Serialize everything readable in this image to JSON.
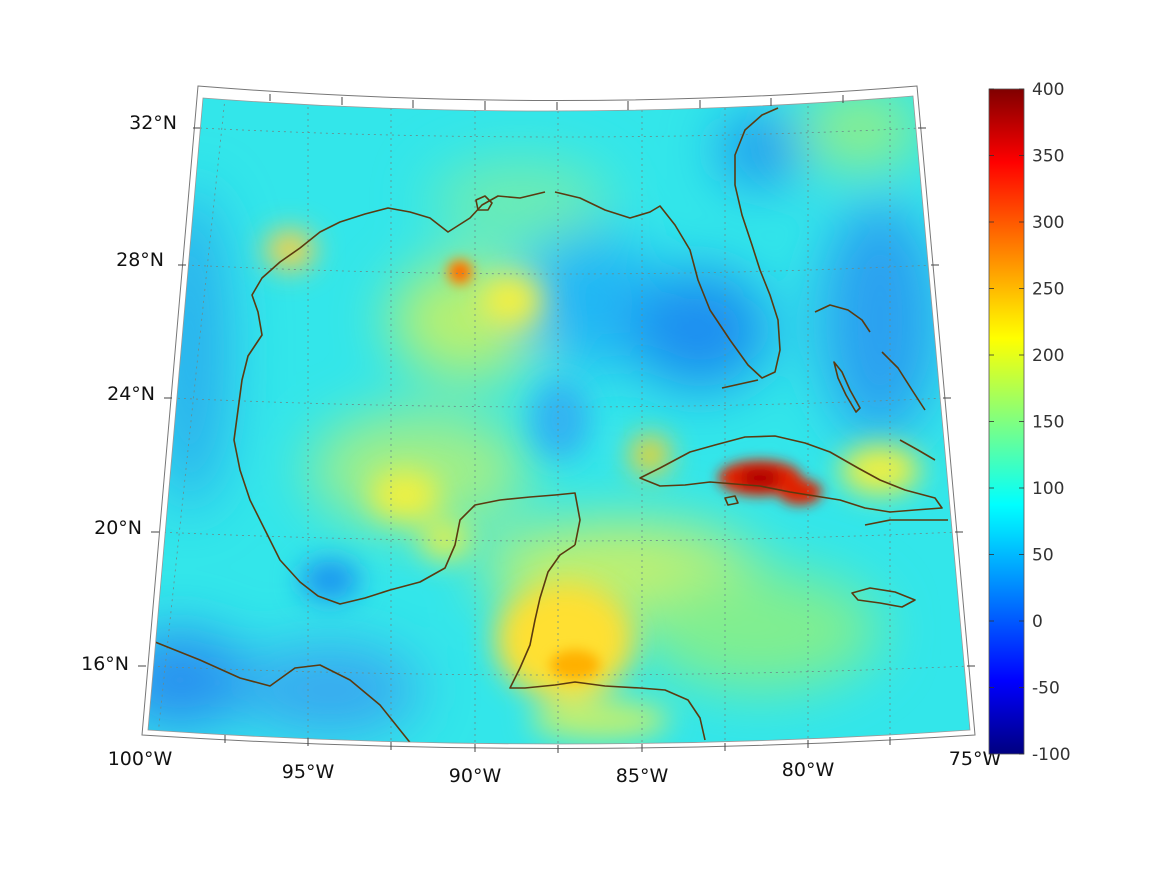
{
  "map": {
    "projection": "conic",
    "region": "Gulf of Mexico and Caribbean",
    "lon_range": [
      -100,
      -75
    ],
    "lat_range": [
      14,
      33
    ],
    "graticule": true,
    "coastline_color": "#5a3a10",
    "lon_labels": [
      "100°W",
      "95°W",
      "90°W",
      "85°W",
      "80°W",
      "75°W"
    ],
    "lat_labels": [
      "32°N",
      "28°N",
      "24°N",
      "20°N",
      "16°N"
    ],
    "hotspots": [
      {
        "name": "central Cuba maximum",
        "lon": -81.3,
        "lat": 21.9,
        "value": 360
      },
      {
        "name": "eastern Cuba maximum",
        "lon": -80.0,
        "lat": 21.6,
        "value": 330
      },
      {
        "name": "northern Gulf maximum",
        "lon": -90.5,
        "lat": 27.7,
        "value": 240
      },
      {
        "name": "Yucatan/Belize maximum",
        "lon": -87.0,
        "lat": 17.0,
        "value": 200
      }
    ]
  },
  "colorbar": {
    "colormap": "jet",
    "min": -100,
    "max": 400,
    "ticks": [
      "400",
      "350",
      "300",
      "250",
      "200",
      "150",
      "100",
      "50",
      "0",
      "-50",
      "-100"
    ]
  }
}
